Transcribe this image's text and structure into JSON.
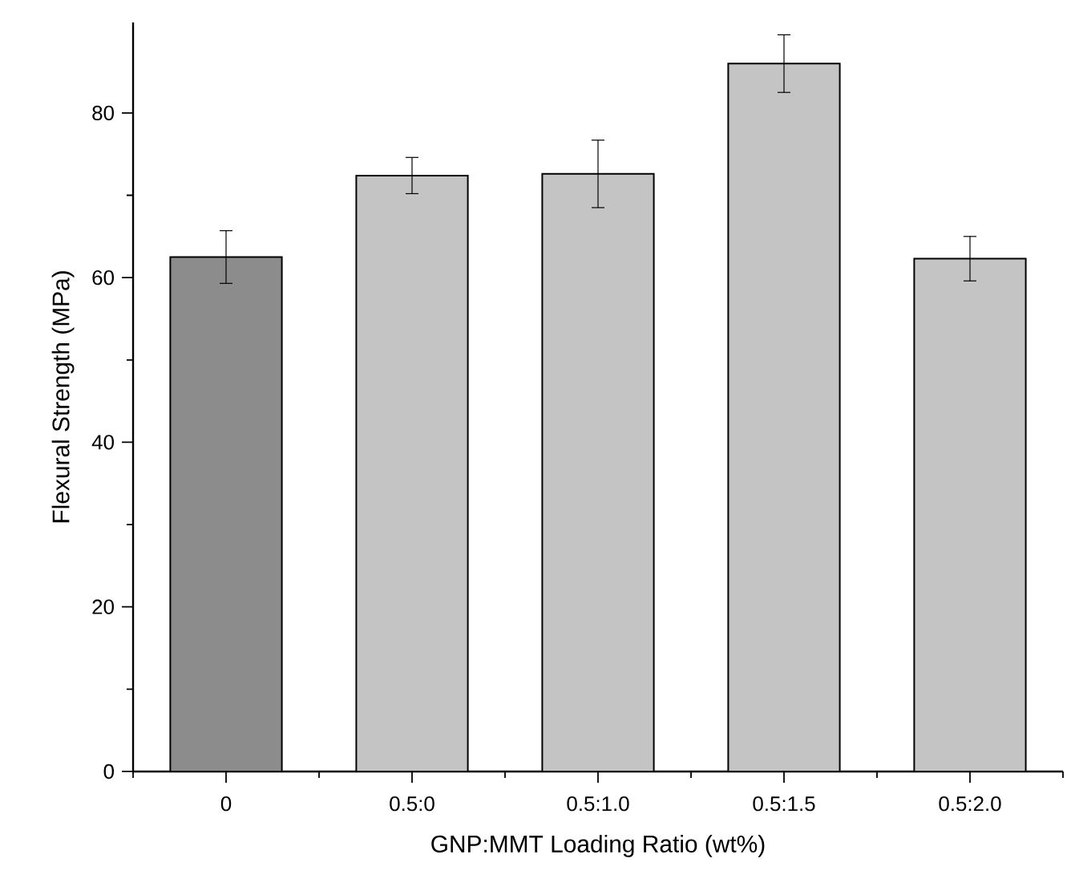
{
  "chart_data": {
    "type": "bar",
    "xlabel": "GNP:MMT Loading Ratio (wt%)",
    "ylabel": "Flexural Strength (MPa)",
    "categories": [
      "0",
      "0.5:0",
      "0.5:1.0",
      "0.5:1.5",
      "0.5:2.0"
    ],
    "values": [
      62.5,
      72.4,
      72.6,
      86.0,
      62.3
    ],
    "errors": [
      3.2,
      2.2,
      4.1,
      3.5,
      2.7
    ],
    "colors": [
      "#8c8c8c",
      "#c4c4c4",
      "#c4c4c4",
      "#c4c4c4",
      "#c4c4c4"
    ],
    "ylim": [
      0,
      91
    ],
    "yticks": [
      0,
      20,
      40,
      60,
      80
    ]
  }
}
